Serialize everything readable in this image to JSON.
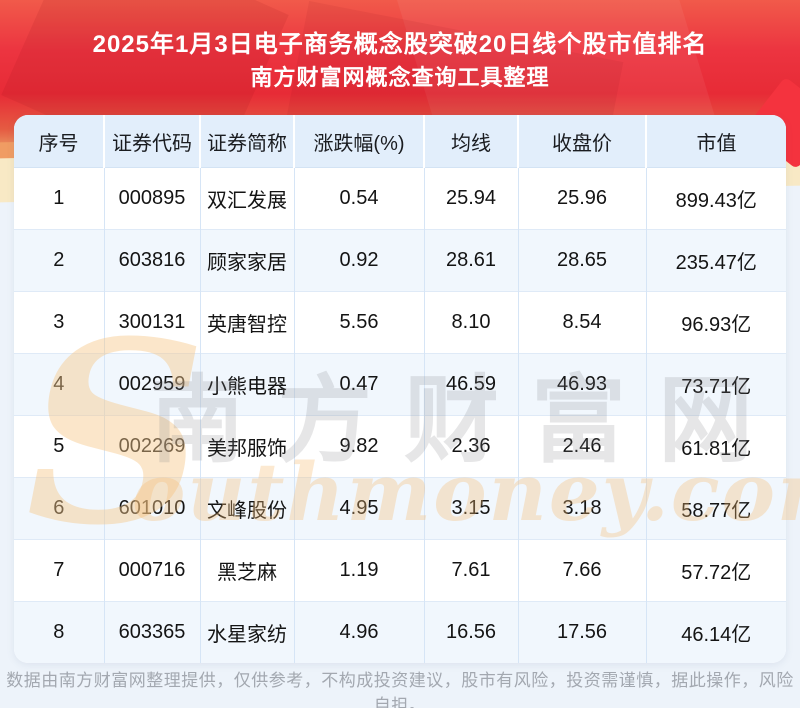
{
  "header": {
    "title": "2025年1月3日电子商务概念股突破20日线个股市值排名",
    "subtitle": "南方财富网概念查询工具整理"
  },
  "chart_data": {
    "type": "table",
    "title": "2025年1月3日电子商务概念股突破20日线个股市值排名",
    "subtitle": "南方财富网概念查询工具整理",
    "columns": [
      "序号",
      "证券代码",
      "证券简称",
      "涨跌幅(%)",
      "均线",
      "收盘价",
      "市值"
    ],
    "rows": [
      [
        "1",
        "000895",
        "双汇发展",
        "0.54",
        "25.94",
        "25.96",
        "899.43亿"
      ],
      [
        "2",
        "603816",
        "顾家家居",
        "0.92",
        "28.61",
        "28.65",
        "235.47亿"
      ],
      [
        "3",
        "300131",
        "英唐智控",
        "5.56",
        "8.10",
        "8.54",
        "96.93亿"
      ],
      [
        "4",
        "002959",
        "小熊电器",
        "0.47",
        "46.59",
        "46.93",
        "73.71亿"
      ],
      [
        "5",
        "002269",
        "美邦服饰",
        "9.82",
        "2.36",
        "2.46",
        "61.81亿"
      ],
      [
        "6",
        "601010",
        "文峰股份",
        "4.95",
        "3.15",
        "3.18",
        "58.77亿"
      ],
      [
        "7",
        "000716",
        "黑芝麻",
        "1.19",
        "7.61",
        "7.66",
        "57.72亿"
      ],
      [
        "8",
        "603365",
        "水星家纺",
        "4.96",
        "16.56",
        "17.56",
        "46.14亿"
      ]
    ]
  },
  "watermark": {
    "initial": "S",
    "cn": "南方财富网",
    "en": "outhmoney.com"
  },
  "footer": {
    "disclaimer": "数据由南方财富网整理提供，仅供参考，不构成投资建议，股市有风险，投资需谨慎，据此操作，风险自担。"
  },
  "colors": {
    "banner_red": "#ec3440",
    "banner_red_light": "#f15a4a",
    "header_row_bg": "#e2eefb",
    "row_alt_bg": "#f1f7fd",
    "table_border": "#d6e5f6",
    "wave_orange": "#f09c63",
    "wave_cream": "#f8e9c5",
    "footer_text": "#a3a8b0"
  }
}
